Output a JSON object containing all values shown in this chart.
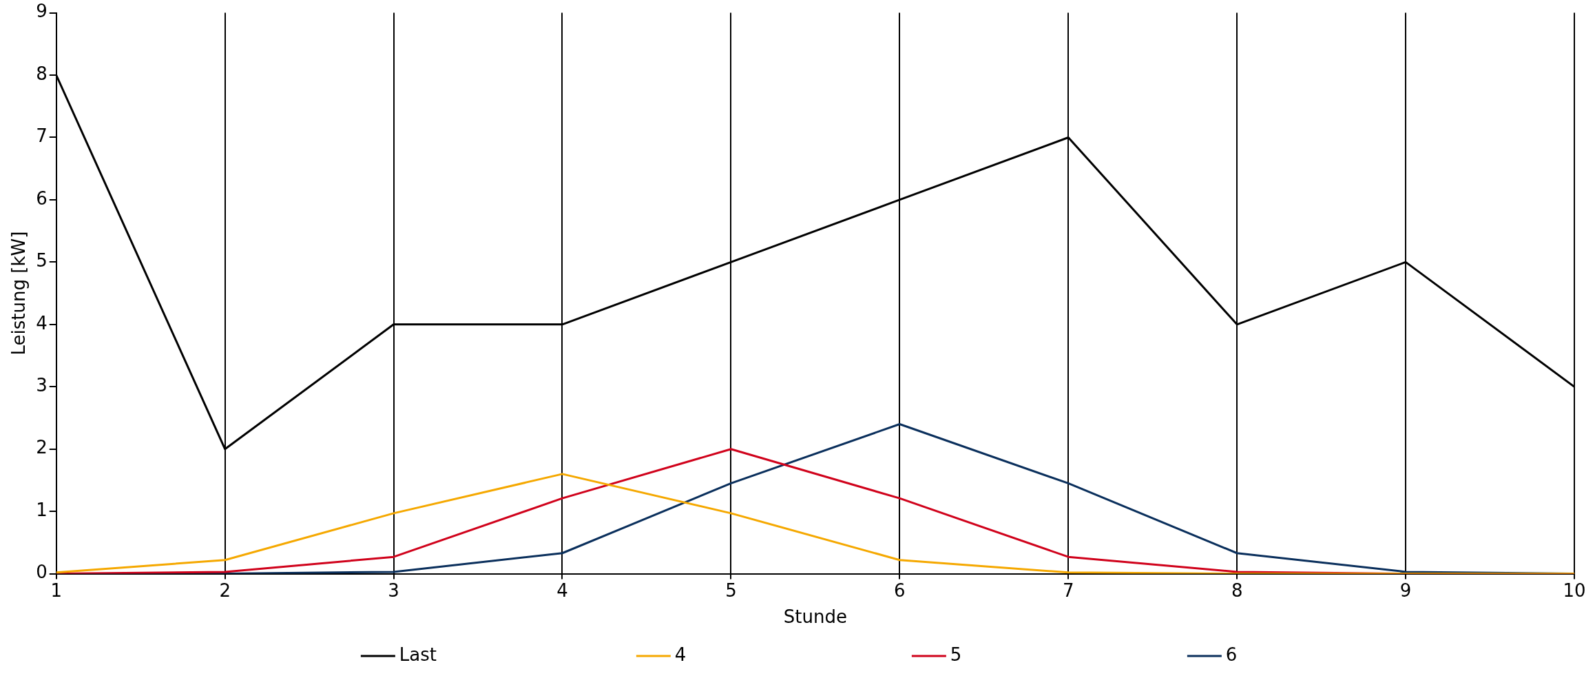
{
  "chart_data": {
    "type": "line",
    "xlabel": "Stunde",
    "ylabel": "Leistung [kW]",
    "x": [
      1,
      2,
      3,
      4,
      5,
      6,
      7,
      8,
      9,
      10
    ],
    "xlim": [
      1,
      10
    ],
    "xticks": [
      1,
      2,
      3,
      4,
      5,
      6,
      7,
      8,
      9,
      10
    ],
    "ylim": [
      0,
      9
    ],
    "yticks": [
      0,
      1,
      2,
      3,
      4,
      5,
      6,
      7,
      8,
      9
    ],
    "grid": "x",
    "legend": "bottom",
    "marker": "none",
    "line_style": "solid",
    "series": [
      {
        "name": "Last",
        "color": "#000000",
        "values": [
          8,
          2,
          4,
          4,
          5,
          6,
          7,
          4,
          5,
          3
        ]
      },
      {
        "name": "4",
        "color": "#f5a800",
        "values": [
          0.02,
          0.22,
          0.97,
          1.6,
          0.97,
          0.22,
          0.02,
          0,
          0,
          0
        ]
      },
      {
        "name": "5",
        "color": "#d0021b",
        "values": [
          0,
          0.03,
          0.27,
          1.21,
          2,
          1.21,
          0.27,
          0.03,
          0,
          0
        ]
      },
      {
        "name": "6",
        "color": "#0a2f5c",
        "values": [
          0,
          0,
          0.03,
          0.33,
          1.45,
          2.4,
          1.45,
          0.33,
          0.03,
          0
        ]
      }
    ]
  }
}
